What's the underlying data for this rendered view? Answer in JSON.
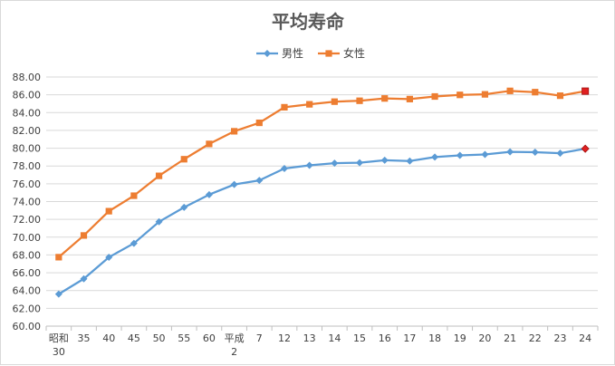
{
  "chart_data": {
    "type": "line",
    "title": "平均寿命",
    "categories": [
      "昭和\n30",
      "35",
      "40",
      "45",
      "50",
      "55",
      "60",
      "平成\n2",
      "7",
      "12",
      "13",
      "14",
      "15",
      "16",
      "17",
      "18",
      "19",
      "20",
      "21",
      "22",
      "23",
      "24"
    ],
    "series": [
      {
        "name": "男性",
        "color": "#5b9bd5",
        "marker": "diamond",
        "values": [
          63.6,
          65.32,
          67.74,
          69.31,
          71.73,
          73.35,
          74.78,
          75.92,
          76.38,
          77.72,
          78.07,
          78.32,
          78.36,
          78.64,
          78.56,
          79.0,
          79.19,
          79.29,
          79.59,
          79.55,
          79.44,
          79.94
        ]
      },
      {
        "name": "女性",
        "color": "#ed7d31",
        "marker": "square",
        "values": [
          67.75,
          70.19,
          72.92,
          74.66,
          76.89,
          78.76,
          80.48,
          81.9,
          82.85,
          84.6,
          84.93,
          85.23,
          85.33,
          85.59,
          85.52,
          85.81,
          85.99,
          86.05,
          86.44,
          86.3,
          85.9,
          86.41
        ]
      }
    ],
    "highlight_last_point_color": "#e02020",
    "y_ticks": [
      "60.00",
      "62.00",
      "64.00",
      "66.00",
      "68.00",
      "70.00",
      "72.00",
      "74.00",
      "76.00",
      "78.00",
      "80.00",
      "82.00",
      "84.00",
      "86.00",
      "88.00"
    ],
    "ylim": [
      60,
      88
    ],
    "grid": "horizontal",
    "legend_position": "top"
  }
}
